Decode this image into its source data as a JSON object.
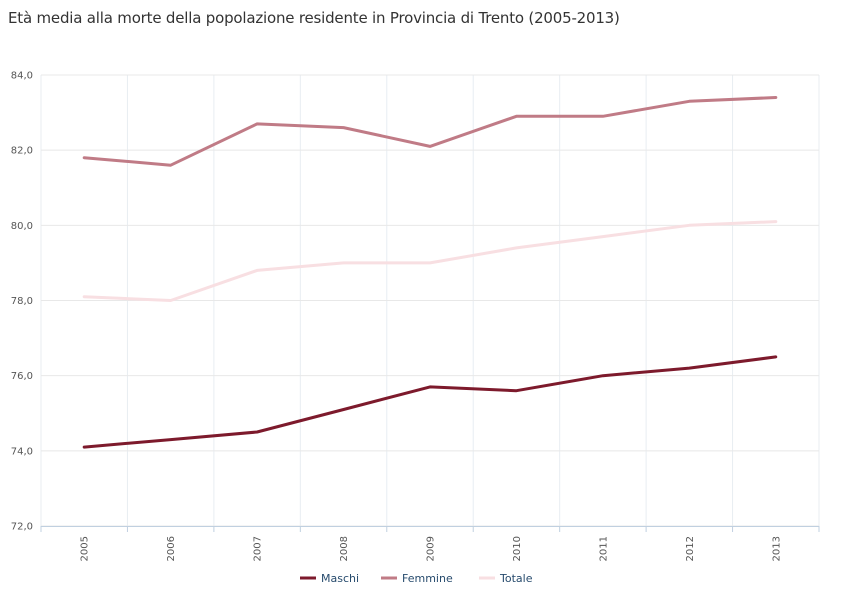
{
  "chart_data": {
    "type": "line",
    "title": "Età media alla morte della popolazione residente in Provincia di Trento (2005-2013)",
    "categories": [
      "2005",
      "2006",
      "2007",
      "2008",
      "2009",
      "2010",
      "2011",
      "2012",
      "2013"
    ],
    "ylim": [
      72,
      84
    ],
    "yticks": [
      "72,0",
      "74,0",
      "76,0",
      "78,0",
      "80,0",
      "82,0",
      "84,0"
    ],
    "ytick_values": [
      72,
      74,
      76,
      78,
      80,
      82,
      84
    ],
    "grid": true,
    "legend_position": "bottom-center",
    "series": [
      {
        "name": "Maschi",
        "color": "#7d1a2c",
        "values": [
          74.1,
          74.3,
          74.5,
          75.1,
          75.7,
          75.6,
          76.0,
          76.2,
          76.5
        ]
      },
      {
        "name": "Femmine",
        "color": "#c07b86",
        "values": [
          81.8,
          81.6,
          82.7,
          82.6,
          82.1,
          82.9,
          82.9,
          83.3,
          83.4
        ]
      },
      {
        "name": "Totale",
        "color": "#f8dfe2",
        "values": [
          78.1,
          78.0,
          78.8,
          79.0,
          79.0,
          79.4,
          79.7,
          80.0,
          80.1
        ]
      }
    ]
  }
}
